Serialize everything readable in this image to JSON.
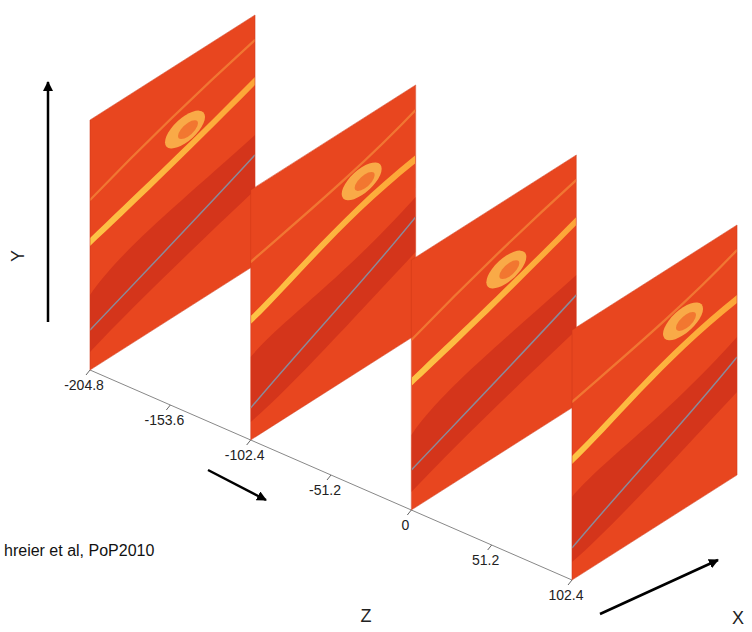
{
  "chart_data": {
    "type": "slices",
    "slices": [
      -204.8,
      -102.4,
      0,
      102.4
    ],
    "zlim": [
      -204.8,
      102.4
    ],
    "zticks": [
      -204.8,
      -153.6,
      -102.4,
      -51.2,
      0,
      51.2,
      102.4
    ],
    "xlabel": "X",
    "ylabel": "Y",
    "zlabel": "Z",
    "caption": "hreier et al, PoP2010",
    "color": "#e8461f"
  }
}
